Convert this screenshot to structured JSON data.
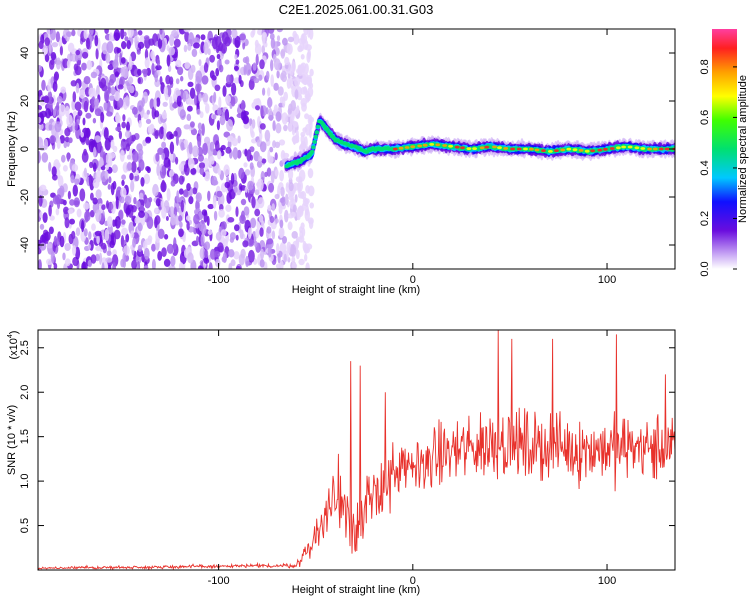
{
  "figure": {
    "title": "C2E1.2025.061.00.31.G03"
  },
  "chart_data": [
    {
      "type": "heatmap",
      "xlabel": "Height of straight line (km)",
      "ylabel": "Frequency (Hz)",
      "xlim": [
        -193,
        135
      ],
      "ylim": [
        -50,
        50
      ],
      "x_ticks": [
        -100,
        0,
        100
      ],
      "x_tick_labels": [
        "-100",
        "0",
        "100"
      ],
      "y_ticks": [
        -40,
        -20,
        0,
        20,
        40
      ],
      "y_tick_labels": [
        "-40",
        "-20",
        "0",
        "20",
        "40"
      ],
      "grid": false,
      "colormap": "rainbow",
      "noise_region_x": [
        -193,
        -62
      ],
      "signal_track": {
        "x": [
          -65,
          -58,
          -52,
          -48,
          -44,
          -40,
          -35,
          -30,
          -25,
          -20,
          -10,
          0,
          10,
          20,
          30,
          40,
          50,
          60,
          70,
          80,
          90,
          100,
          110,
          120,
          130,
          135
        ],
        "frequency": [
          -7,
          -5,
          -2,
          12,
          8,
          4,
          2,
          1,
          -1,
          0,
          0,
          1,
          2,
          1,
          0,
          1,
          0,
          0,
          -1,
          0,
          -1,
          0,
          1,
          0,
          0,
          0
        ]
      },
      "colorbar": {
        "label": "Normalized spectral amplitude",
        "range": [
          0.0,
          0.95
        ],
        "ticks": [
          0.0,
          0.2,
          0.4,
          0.6,
          0.8
        ],
        "tick_labels": [
          "0.0",
          "0.2",
          "0.4",
          "0.6",
          "0.8"
        ]
      }
    },
    {
      "type": "line",
      "xlabel": "Height of straight line (km)",
      "ylabel": "SNR (10 * v/v)",
      "y_scale_note_base": "(x10",
      "y_scale_note_exp": "4",
      "y_scale_note_end": ")",
      "xlim": [
        -193,
        135
      ],
      "ylim": [
        0,
        2.7
      ],
      "x_ticks": [
        -100,
        0,
        100
      ],
      "x_tick_labels": [
        "-100",
        "0",
        "100"
      ],
      "y_ticks": [
        0.5,
        1.0,
        1.5,
        2.0,
        2.5
      ],
      "y_tick_labels": [
        "0.5",
        "1.0",
        "1.5",
        "2.0",
        "2.5"
      ],
      "grid": false,
      "color": "#e8312b",
      "envelope": {
        "x": [
          -193,
          -60,
          -52,
          -45,
          -38,
          -32,
          -28,
          -22,
          -15,
          -5,
          5,
          15,
          25,
          35,
          45,
          55,
          65,
          75,
          85,
          95,
          105,
          115,
          125,
          135
        ],
        "mean": [
          0.02,
          0.05,
          0.3,
          0.6,
          0.9,
          0.6,
          0.5,
          0.7,
          1.0,
          1.1,
          1.2,
          1.3,
          1.35,
          1.4,
          1.45,
          1.4,
          1.38,
          1.4,
          1.35,
          1.38,
          1.35,
          1.4,
          1.35,
          1.4
        ],
        "spread": [
          0.02,
          0.03,
          0.2,
          0.4,
          0.6,
          0.5,
          0.5,
          0.6,
          0.5,
          0.4,
          0.4,
          0.45,
          0.5,
          0.5,
          0.55,
          0.5,
          0.5,
          0.5,
          0.5,
          0.5,
          0.5,
          0.5,
          0.5,
          0.5
        ]
      },
      "peaks": [
        {
          "x": -32,
          "y": 2.35
        },
        {
          "x": -27,
          "y": 2.3
        },
        {
          "x": -14,
          "y": 2.0
        },
        {
          "x": 44,
          "y": 2.7
        },
        {
          "x": 51,
          "y": 2.6
        },
        {
          "x": 72,
          "y": 2.6
        },
        {
          "x": 105,
          "y": 2.65
        },
        {
          "x": 130,
          "y": 2.2
        }
      ]
    }
  ]
}
